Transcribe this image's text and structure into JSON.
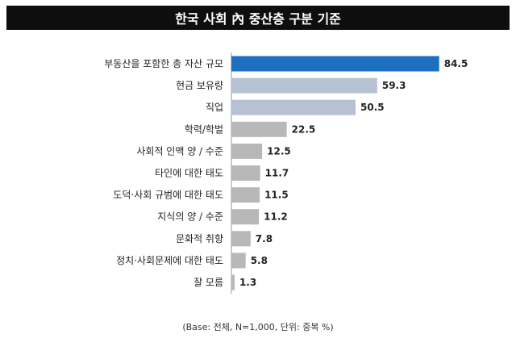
{
  "chart_data": {
    "type": "bar",
    "orientation": "horizontal",
    "title": "한국 사회 內 중산층 구분 기준",
    "categories": [
      "부동산을 포함한 총 자산 규모",
      "현금 보유량",
      "직업",
      "학력/학벌",
      "사회적 인맥 양 / 수준",
      "타인에 대한 태도",
      "도덕·사회 규범에 대한 태도",
      "지식의 양 / 수준",
      "문화적 취향",
      "정치·사회문제에 대한 태도",
      "잘 모름"
    ],
    "values": [
      84.5,
      59.3,
      50.5,
      22.5,
      12.5,
      11.7,
      11.5,
      11.2,
      7.8,
      5.8,
      1.3
    ],
    "value_labels": [
      "84.5",
      "59.3",
      "50.5",
      "22.5",
      "12.5",
      "11.7",
      "11.5",
      "11.2",
      "7.8",
      "5.8",
      "1.3"
    ],
    "xlim": [
      0,
      100
    ],
    "grid": false,
    "note": "(Base: 전체, N=1,000, 단위: 중복 %)",
    "colors": [
      "#1f6fc0",
      "#b6c2d4",
      "#b6c2d4",
      "#b8b8b8",
      "#b8b8b8",
      "#b8b8b8",
      "#b8b8b8",
      "#b8b8b8",
      "#b8b8b8",
      "#b8b8b8",
      "#b8b8b8"
    ]
  }
}
